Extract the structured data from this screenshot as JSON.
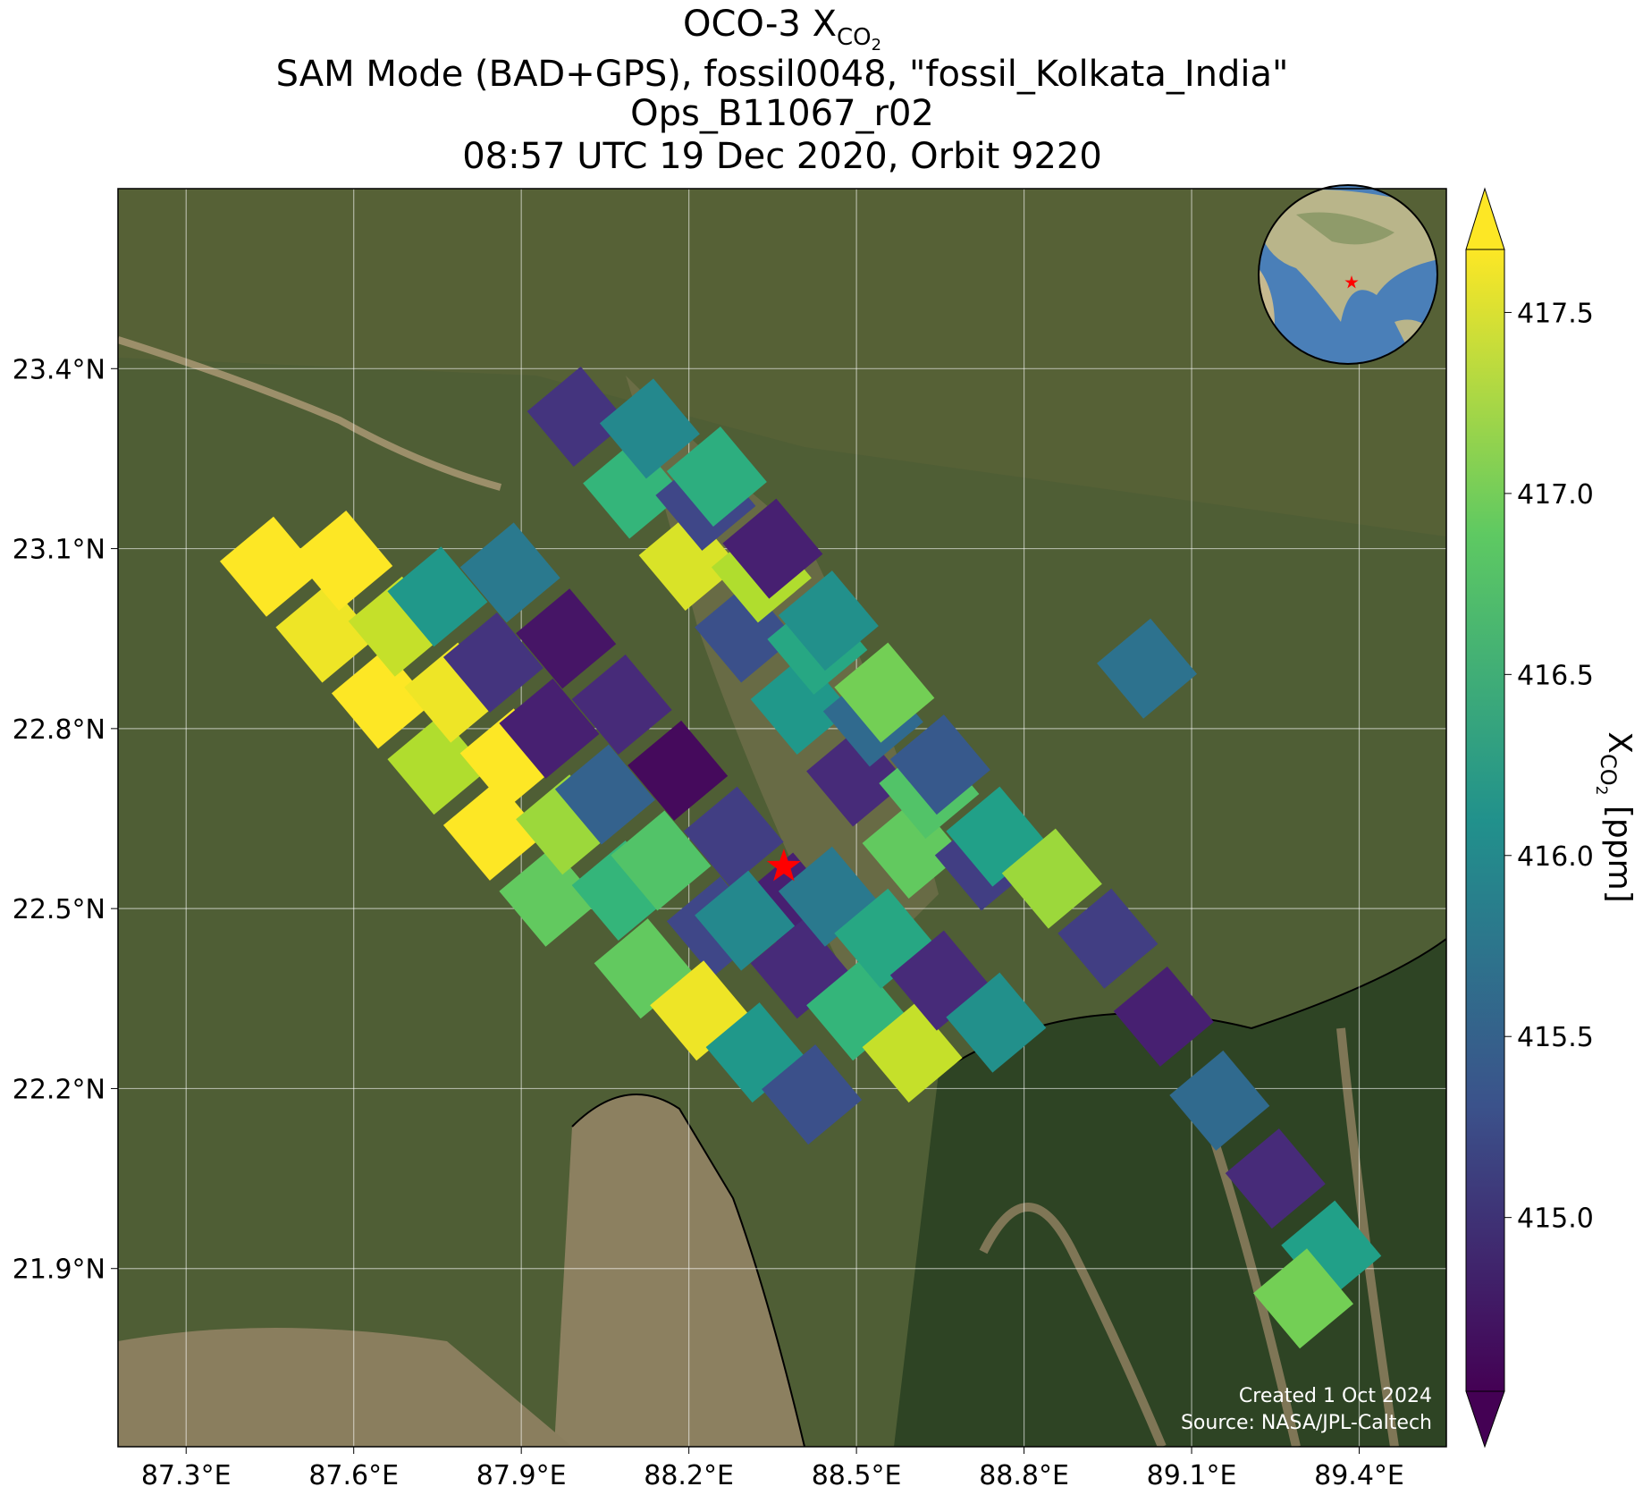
{
  "chart_data": {
    "type": "scatter",
    "title": {
      "line0": {
        "main": "OCO-3 X",
        "sub": "CO",
        "subsub": "2"
      },
      "line1": "SAM Mode (BAD+GPS), fossil0048, \"fossil_Kolkata_India\"",
      "line2": "Ops_B11067_r02",
      "line3": "08:57 UTC 19 Dec 2020, Orbit 9220"
    },
    "xlim": [
      87.178,
      89.556
    ],
    "ylim": [
      21.603,
      23.7
    ],
    "xticks": [
      {
        "value": 87.3,
        "label": "87.3°E"
      },
      {
        "value": 87.6,
        "label": "87.6°E"
      },
      {
        "value": 87.9,
        "label": "87.9°E"
      },
      {
        "value": 88.2,
        "label": "88.2°E"
      },
      {
        "value": 88.5,
        "label": "88.5°E"
      },
      {
        "value": 88.8,
        "label": "88.8°E"
      },
      {
        "value": 89.1,
        "label": "89.1°E"
      },
      {
        "value": 89.4,
        "label": "89.4°E"
      }
    ],
    "yticks": [
      {
        "value": 21.9,
        "label": "21.9°N"
      },
      {
        "value": 22.2,
        "label": "22.2°N"
      },
      {
        "value": 22.5,
        "label": "22.5°N"
      },
      {
        "value": 22.8,
        "label": "22.8°N"
      },
      {
        "value": 23.1,
        "label": "23.1°N"
      },
      {
        "value": 23.4,
        "label": "23.4°N"
      }
    ],
    "grid": true,
    "x": [
      87.45,
      87.55,
      87.65,
      87.75,
      87.85,
      87.95,
      87.58,
      87.68,
      87.78,
      87.88,
      87.98,
      88.08,
      87.75,
      87.85,
      87.95,
      88.05,
      88.15,
      88.25,
      87.88,
      87.98,
      88.08,
      88.18,
      88.28,
      88.38,
      88.0,
      88.1,
      88.2,
      88.3,
      88.4,
      88.5,
      88.6,
      88.13,
      88.23,
      88.33,
      88.43,
      88.53,
      88.63,
      88.73,
      88.25,
      88.35,
      88.45,
      88.55,
      88.65,
      88.75,
      88.12,
      88.22,
      88.32,
      88.42,
      88.3,
      88.4,
      88.5,
      88.6,
      88.45,
      88.55,
      88.65,
      88.75,
      88.85,
      88.95,
      89.05,
      89.15,
      89.25,
      89.35,
      89.3,
      89.02
    ],
    "y": [
      23.07,
      22.96,
      22.85,
      22.74,
      22.63,
      22.52,
      23.08,
      22.97,
      22.86,
      22.75,
      22.64,
      22.53,
      23.02,
      22.91,
      22.8,
      22.69,
      22.58,
      22.47,
      23.06,
      22.95,
      22.84,
      22.73,
      22.62,
      22.51,
      23.32,
      23.2,
      23.08,
      22.96,
      22.84,
      22.72,
      22.6,
      23.3,
      23.18,
      23.06,
      22.94,
      22.82,
      22.7,
      22.58,
      23.22,
      23.1,
      22.98,
      22.86,
      22.74,
      22.62,
      22.4,
      22.33,
      22.26,
      22.19,
      22.48,
      22.4,
      22.33,
      22.26,
      22.52,
      22.45,
      22.38,
      22.31,
      22.55,
      22.45,
      22.32,
      22.18,
      22.05,
      21.93,
      21.85,
      22.9
    ],
    "values": [
      417.7,
      417.6,
      417.7,
      417.3,
      417.7,
      416.9,
      417.7,
      417.4,
      417.6,
      417.7,
      417.2,
      416.6,
      416.2,
      415.0,
      414.8,
      415.5,
      416.8,
      415.2,
      415.8,
      414.7,
      414.9,
      414.6,
      415.1,
      414.8,
      415.0,
      416.6,
      417.5,
      415.3,
      416.2,
      414.9,
      416.9,
      416.0,
      415.2,
      417.3,
      416.4,
      415.6,
      416.8,
      415.1,
      416.5,
      414.8,
      416.1,
      417.0,
      415.4,
      416.3,
      416.9,
      417.6,
      416.2,
      415.3,
      416.0,
      414.9,
      416.6,
      417.4,
      415.8,
      416.4,
      414.9,
      416.1,
      417.2,
      415.1,
      414.8,
      415.6,
      414.9,
      416.3,
      417.0,
      415.7
    ],
    "target": {
      "lon": 88.37,
      "lat": 22.57
    },
    "colorbar": {
      "lim": [
        414.52,
        417.674
      ],
      "ticks": [
        {
          "value": 415,
          "label": "415.0"
        },
        415.5,
        {
          "value": 416,
          "label": "416.0"
        },
        416.5,
        {
          "value": 417,
          "label": "417.0"
        },
        417.5
      ],
      "label": {
        "main": "X",
        "sub": "CO",
        "subsub": "2",
        "unit": " [ppm]"
      }
    },
    "annotations": [
      "Created 1 Oct 2024",
      "Source: NASA/JPL-Caltech"
    ]
  }
}
